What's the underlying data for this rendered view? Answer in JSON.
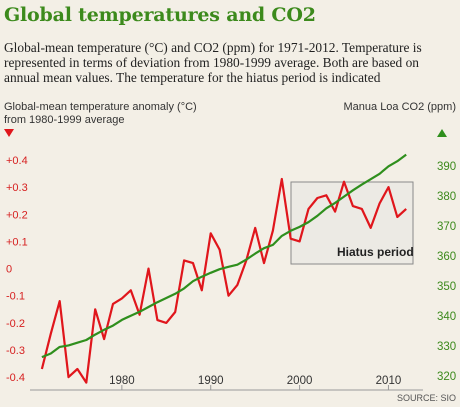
{
  "header": {
    "title": "Global temperatures and CO2",
    "subtitle": "Global-mean temperature (°C) and CO2 (ppm) for 1971-2012. Temperature is represented in terms of deviation from 1980-1999 average. Both are based on annual mean values. The temperature for the hiatus period is indicated"
  },
  "source": "SOURCE: SIO",
  "colors": {
    "temperature": "#e0161c",
    "co2": "#2f8f1d",
    "title": "#3c8a1c",
    "background": "#f3efe6"
  },
  "chart_data": {
    "type": "line",
    "title": "Global temperatures and CO2",
    "ylabel_left_line1": "Global-mean temperature anomaly (°C)",
    "ylabel_left_line2": "from 1980-1999 average",
    "ylabel_right": "Manua Loa CO2 (ppm)",
    "x_ticks": [
      1980,
      1990,
      2000,
      2010
    ],
    "xlim": [
      1970,
      2014
    ],
    "left_ticks": [
      {
        "value": 0.4,
        "label": "+0.4"
      },
      {
        "value": 0.3,
        "label": "+0.3"
      },
      {
        "value": 0.2,
        "label": "+0.2"
      },
      {
        "value": 0.1,
        "label": "+0.1"
      },
      {
        "value": 0,
        "label": "0"
      },
      {
        "value": -0.1,
        "label": "-0.1"
      },
      {
        "value": -0.2,
        "label": "-0.2"
      },
      {
        "value": -0.3,
        "label": "-0.3"
      },
      {
        "value": -0.4,
        "label": "-0.4"
      }
    ],
    "right_ticks": [
      390,
      380,
      370,
      360,
      350,
      340,
      330,
      320
    ],
    "left_ylim": [
      -0.44,
      0.4
    ],
    "right_ylim": [
      316,
      392
    ],
    "annotation": {
      "label": "Hiatus period",
      "x_range": [
        1998,
        2012
      ]
    },
    "grid": false,
    "series": [
      {
        "name": "Global-mean temperature anomaly",
        "axis": "left",
        "x": [
          1971,
          1972,
          1973,
          1974,
          1975,
          1976,
          1977,
          1978,
          1979,
          1980,
          1981,
          1982,
          1983,
          1984,
          1985,
          1986,
          1987,
          1988,
          1989,
          1990,
          1991,
          1992,
          1993,
          1994,
          1995,
          1996,
          1997,
          1998,
          1999,
          2000,
          2001,
          2002,
          2003,
          2004,
          2005,
          2006,
          2007,
          2008,
          2009,
          2010,
          2011,
          2012
        ],
        "values": [
          -0.37,
          -0.24,
          -0.12,
          -0.4,
          -0.37,
          -0.42,
          -0.15,
          -0.26,
          -0.13,
          -0.11,
          -0.08,
          -0.17,
          0.0,
          -0.19,
          -0.2,
          -0.16,
          0.03,
          0.02,
          -0.08,
          0.13,
          0.07,
          -0.1,
          -0.06,
          0.03,
          0.15,
          0.02,
          0.14,
          0.33,
          0.11,
          0.1,
          0.22,
          0.26,
          0.27,
          0.21,
          0.32,
          0.23,
          0.22,
          0.15,
          0.24,
          0.3,
          0.19,
          0.22
        ]
      },
      {
        "name": "Manua Loa CO2",
        "axis": "right",
        "x": [
          1971,
          1972,
          1973,
          1974,
          1975,
          1976,
          1977,
          1978,
          1979,
          1980,
          1981,
          1982,
          1983,
          1984,
          1985,
          1986,
          1987,
          1988,
          1989,
          1990,
          1991,
          1992,
          1993,
          1994,
          1995,
          1996,
          1997,
          1998,
          1999,
          2000,
          2001,
          2002,
          2003,
          2004,
          2005,
          2006,
          2007,
          2008,
          2009,
          2010,
          2011,
          2012
        ],
        "values": [
          326.3,
          327.5,
          329.7,
          330.2,
          331.1,
          332.0,
          333.8,
          335.4,
          336.8,
          338.7,
          340.1,
          341.4,
          343.0,
          344.6,
          346.0,
          347.4,
          349.2,
          351.6,
          353.1,
          354.4,
          355.6,
          356.4,
          357.1,
          358.8,
          360.8,
          362.6,
          363.7,
          366.7,
          368.4,
          369.7,
          371.3,
          373.4,
          375.9,
          377.7,
          379.8,
          381.9,
          383.8,
          385.6,
          387.4,
          389.9,
          391.6,
          393.8
        ]
      }
    ]
  }
}
